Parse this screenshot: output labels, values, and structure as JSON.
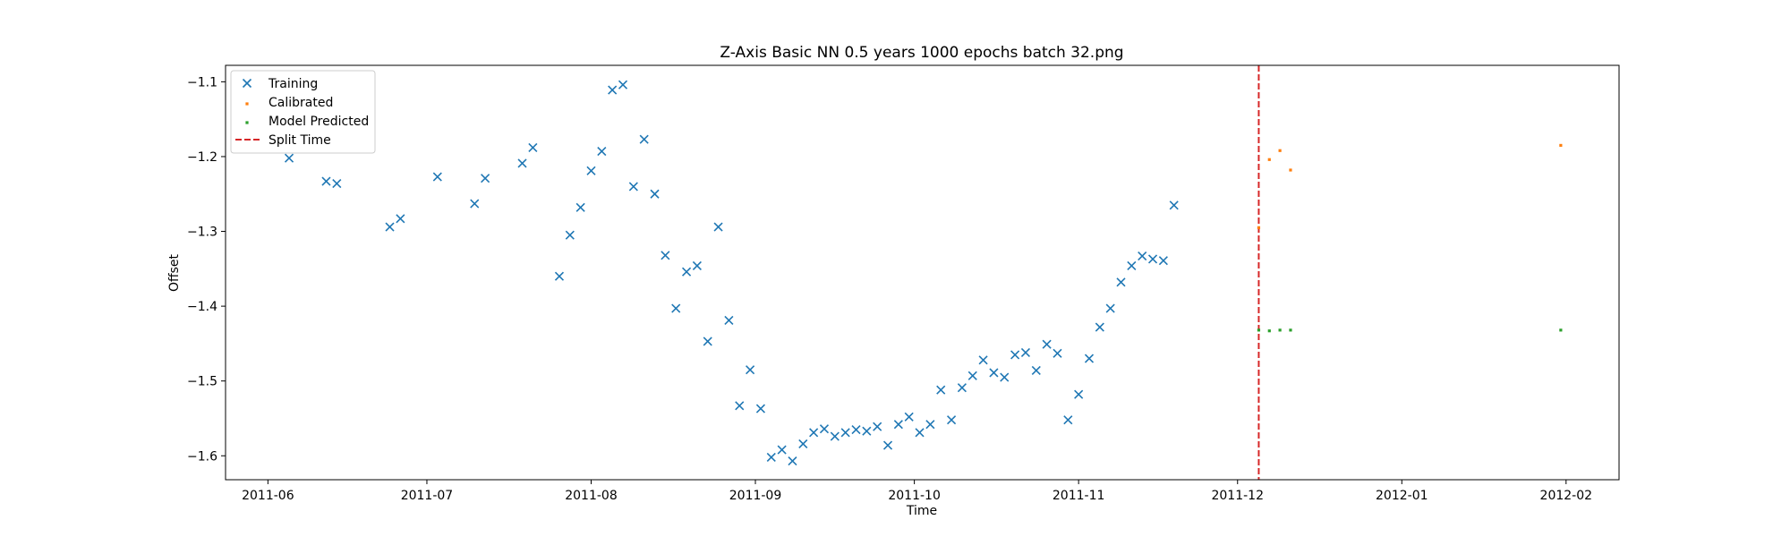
{
  "chart_data": {
    "type": "scatter",
    "title": "Z-Axis Basic NN 0.5 years 1000 epochs batch 32.png",
    "xlabel": "Time",
    "ylabel": "Offset",
    "xlim": [
      "2011-05-24",
      "2012-02-11"
    ],
    "ylim": [
      -1.632,
      -1.078
    ],
    "x_ticks": [
      "2011-06",
      "2011-07",
      "2011-08",
      "2011-09",
      "2011-10",
      "2011-11",
      "2011-12",
      "2012-01",
      "2012-02"
    ],
    "y_ticks": [
      -1.6,
      -1.5,
      -1.4,
      -1.3,
      -1.2,
      -1.1
    ],
    "grid": false,
    "legend_position": "top-left",
    "split_time": {
      "name": "Split Time",
      "x": "2011-12-05",
      "color": "#d62728"
    },
    "series": [
      {
        "name": "Training",
        "marker": "x",
        "color": "#1f77b4",
        "points": [
          [
            "2011-06-05",
            -1.202
          ],
          [
            "2011-06-12",
            -1.233
          ],
          [
            "2011-06-14",
            -1.236
          ],
          [
            "2011-06-24",
            -1.294
          ],
          [
            "2011-06-26",
            -1.283
          ],
          [
            "2011-07-03",
            -1.227
          ],
          [
            "2011-07-10",
            -1.263
          ],
          [
            "2011-07-12",
            -1.229
          ],
          [
            "2011-07-19",
            -1.209
          ],
          [
            "2011-07-21",
            -1.188
          ],
          [
            "2011-07-26",
            -1.36
          ],
          [
            "2011-07-28",
            -1.305
          ],
          [
            "2011-07-30",
            -1.268
          ],
          [
            "2011-08-01",
            -1.219
          ],
          [
            "2011-08-03",
            -1.193
          ],
          [
            "2011-08-05",
            -1.111
          ],
          [
            "2011-08-07",
            -1.104
          ],
          [
            "2011-08-09",
            -1.24
          ],
          [
            "2011-08-11",
            -1.177
          ],
          [
            "2011-08-13",
            -1.25
          ],
          [
            "2011-08-15",
            -1.332
          ],
          [
            "2011-08-17",
            -1.403
          ],
          [
            "2011-08-19",
            -1.354
          ],
          [
            "2011-08-21",
            -1.346
          ],
          [
            "2011-08-23",
            -1.447
          ],
          [
            "2011-08-25",
            -1.294
          ],
          [
            "2011-08-27",
            -1.419
          ],
          [
            "2011-08-29",
            -1.533
          ],
          [
            "2011-08-31",
            -1.485
          ],
          [
            "2011-09-02",
            -1.537
          ],
          [
            "2011-09-04",
            -1.602
          ],
          [
            "2011-09-06",
            -1.592
          ],
          [
            "2011-09-08",
            -1.607
          ],
          [
            "2011-09-10",
            -1.584
          ],
          [
            "2011-09-12",
            -1.569
          ],
          [
            "2011-09-14",
            -1.564
          ],
          [
            "2011-09-16",
            -1.574
          ],
          [
            "2011-09-18",
            -1.569
          ],
          [
            "2011-09-20",
            -1.565
          ],
          [
            "2011-09-22",
            -1.567
          ],
          [
            "2011-09-24",
            -1.561
          ],
          [
            "2011-09-26",
            -1.586
          ],
          [
            "2011-09-28",
            -1.558
          ],
          [
            "2011-09-30",
            -1.548
          ],
          [
            "2011-10-02",
            -1.569
          ],
          [
            "2011-10-04",
            -1.558
          ],
          [
            "2011-10-06",
            -1.512
          ],
          [
            "2011-10-08",
            -1.552
          ],
          [
            "2011-10-10",
            -1.509
          ],
          [
            "2011-10-12",
            -1.493
          ],
          [
            "2011-10-14",
            -1.472
          ],
          [
            "2011-10-16",
            -1.489
          ],
          [
            "2011-10-18",
            -1.495
          ],
          [
            "2011-10-20",
            -1.465
          ],
          [
            "2011-10-22",
            -1.462
          ],
          [
            "2011-10-24",
            -1.486
          ],
          [
            "2011-10-26",
            -1.451
          ],
          [
            "2011-10-28",
            -1.463
          ],
          [
            "2011-10-30",
            -1.552
          ],
          [
            "2011-11-01",
            -1.518
          ],
          [
            "2011-11-03",
            -1.47
          ],
          [
            "2011-11-05",
            -1.428
          ],
          [
            "2011-11-07",
            -1.403
          ],
          [
            "2011-11-09",
            -1.368
          ],
          [
            "2011-11-11",
            -1.346
          ],
          [
            "2011-11-13",
            -1.333
          ],
          [
            "2011-11-15",
            -1.337
          ],
          [
            "2011-11-17",
            -1.339
          ],
          [
            "2011-11-19",
            -1.265
          ]
        ]
      },
      {
        "name": "Calibrated",
        "marker": "dot",
        "color": "#ff7f0e",
        "points": [
          [
            "2011-12-05",
            -1.295
          ],
          [
            "2011-12-07",
            -1.204
          ],
          [
            "2011-12-09",
            -1.192
          ],
          [
            "2011-12-11",
            -1.218
          ],
          [
            "2012-01-31",
            -1.185
          ]
        ]
      },
      {
        "name": "Model Predicted",
        "marker": "dot",
        "color": "#2ca02c",
        "points": [
          [
            "2011-12-05",
            -1.432
          ],
          [
            "2011-12-07",
            -1.433
          ],
          [
            "2011-12-09",
            -1.432
          ],
          [
            "2011-12-11",
            -1.432
          ],
          [
            "2012-01-31",
            -1.432
          ]
        ]
      }
    ]
  }
}
